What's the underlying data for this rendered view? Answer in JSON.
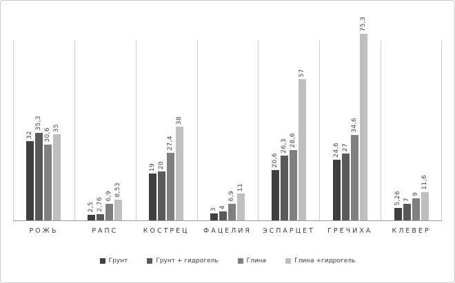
{
  "chart_data": {
    "type": "bar",
    "title": "",
    "xlabel": "",
    "ylabel": "",
    "grid": "vertical-category-separators",
    "legend_position": "bottom",
    "value_labels": "rotated-90-comma-decimal",
    "categories": [
      "РОЖЬ",
      "РАПС",
      "КОСТРЕЦ",
      "ФАЦЕЛИЯ",
      "ЭСПАРЦЕТ",
      "ГРЕЧИХА",
      "КЛЕВЕР"
    ],
    "series": [
      {
        "name": "Грунт",
        "color": "#3f3f3f",
        "values": [
          32,
          2.5,
          19,
          3,
          20.6,
          24.6,
          5.26
        ]
      },
      {
        "name": "Грунт + гидрогель",
        "color": "#595959",
        "values": [
          35.3,
          2.76,
          20,
          4,
          26.3,
          27,
          7
        ]
      },
      {
        "name": "Глина",
        "color": "#7f7f7f",
        "values": [
          30.6,
          6.9,
          27.4,
          6.9,
          28.6,
          34.6,
          9
        ]
      },
      {
        "name": "Глина +гидрогель",
        "color": "#bfbfbf",
        "values": [
          35,
          8.53,
          38,
          11,
          57,
          75.3,
          11.6
        ]
      }
    ]
  }
}
